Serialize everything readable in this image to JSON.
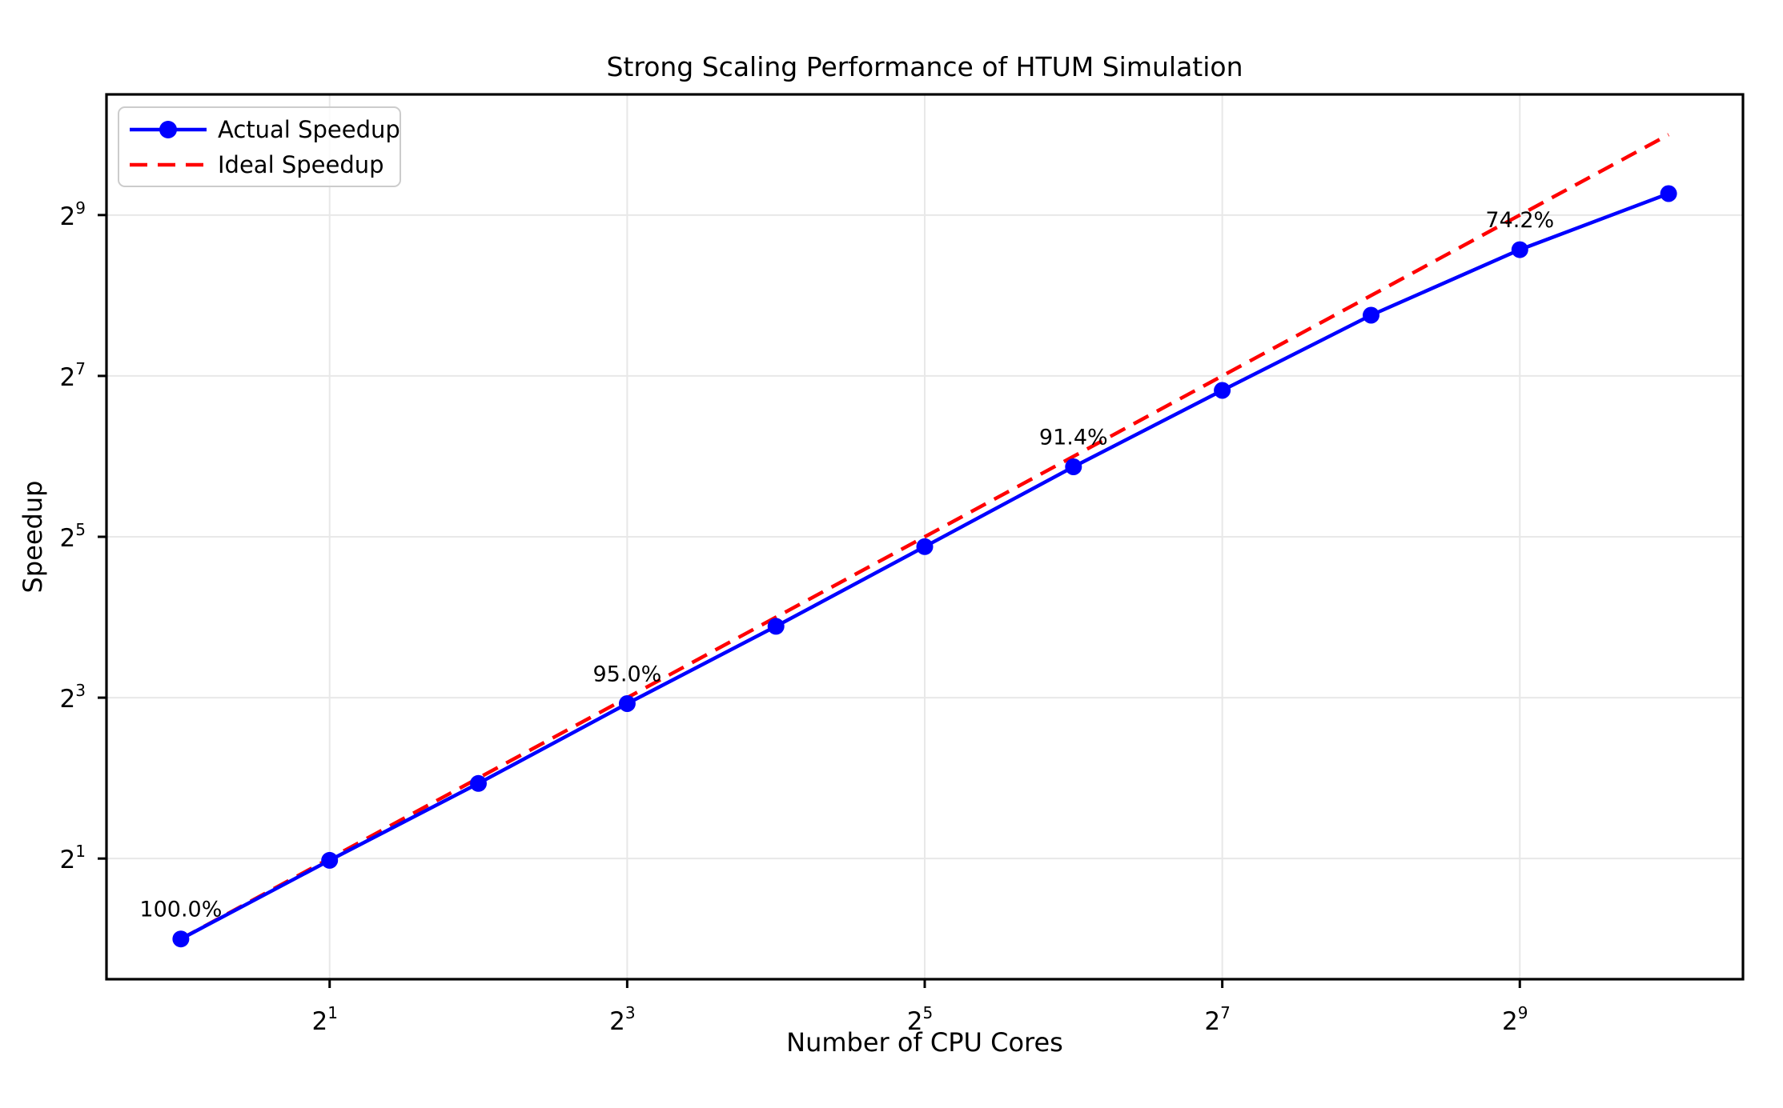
{
  "figure": {
    "background": "#ffffff"
  },
  "chart_data": {
    "type": "line",
    "title": "Strong Scaling Performance of HTUM Simulation",
    "xlabel": "Number of CPU Cores",
    "ylabel": "Speedup",
    "x_scale": "log2",
    "y_scale": "log2",
    "grid": true,
    "legend_position": "upper left",
    "x": [
      1,
      2,
      4,
      8,
      16,
      32,
      64,
      128,
      256,
      512,
      1024
    ],
    "series": [
      {
        "name": "Actual Speedup",
        "values": [
          1.0,
          1.97,
          3.82,
          7.6,
          14.8,
          29.4,
          58.5,
          113,
          216,
          380,
          616
        ],
        "color": "#0000ff",
        "line_style": "solid",
        "marker": "circle"
      },
      {
        "name": "Ideal Speedup",
        "values": [
          1,
          2,
          4,
          8,
          16,
          32,
          64,
          128,
          256,
          512,
          1024
        ],
        "color": "#ff0000",
        "line_style": "dashed",
        "marker": "none"
      }
    ],
    "annotations": [
      {
        "x": 1,
        "y": 1.0,
        "text": "100.0%"
      },
      {
        "x": 8,
        "y": 7.6,
        "text": "95.0%"
      },
      {
        "x": 64,
        "y": 58.5,
        "text": "91.4%"
      },
      {
        "x": 512,
        "y": 380,
        "text": "74.2%"
      }
    ],
    "x_ticks": [
      {
        "base": "2",
        "exponent": "1"
      },
      {
        "base": "2",
        "exponent": "3"
      },
      {
        "base": "2",
        "exponent": "5"
      },
      {
        "base": "2",
        "exponent": "7"
      },
      {
        "base": "2",
        "exponent": "9"
      }
    ],
    "y_ticks": [
      {
        "base": "2",
        "exponent": "1"
      },
      {
        "base": "2",
        "exponent": "3"
      },
      {
        "base": "2",
        "exponent": "5"
      },
      {
        "base": "2",
        "exponent": "7"
      },
      {
        "base": "2",
        "exponent": "9"
      }
    ],
    "xlim": [
      0.707,
      1448
    ],
    "ylim": [
      0.707,
      1448
    ],
    "colors": {
      "grid": "#e8e8e8",
      "spine": "#000000",
      "annotation_text": "#000000",
      "legend_border": "#cccccc",
      "legend_background": "rgba(255,255,255,0.8)"
    }
  }
}
